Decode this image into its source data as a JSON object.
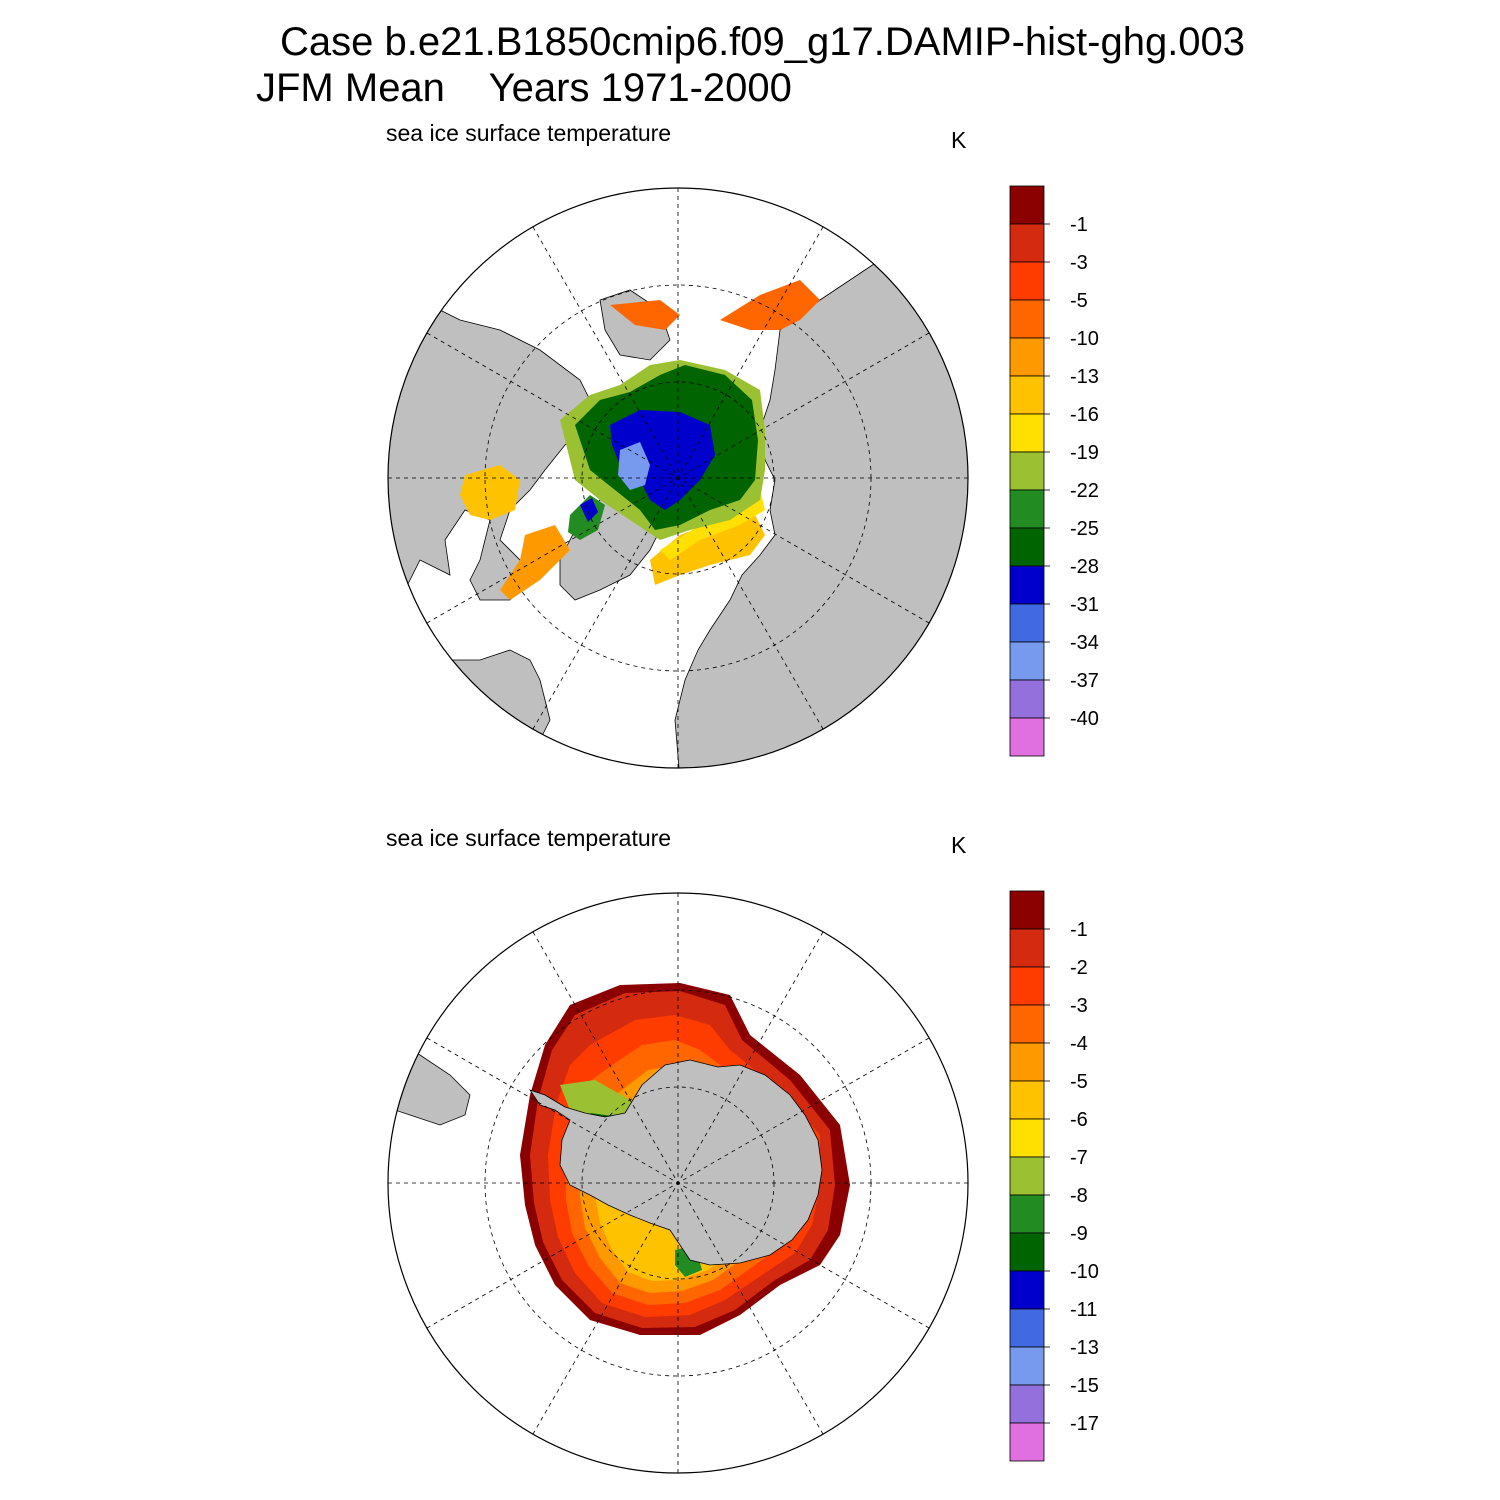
{
  "title": {
    "line1": "Case b.e21.B1850cmip6.f09_g17.DAMIP-hist-ghg.003",
    "line2": "JFM Mean    Years 1971-2000"
  },
  "colors": {
    "land": "#bfbfbf",
    "ocean": "#ffffff",
    "palette": [
      "#8b0000",
      "#d42a10",
      "#ff3c00",
      "#ff6600",
      "#ff9900",
      "#ffc200",
      "#ffe000",
      "#9bc133",
      "#228b22",
      "#006400",
      "#0000cd",
      "#4169e1",
      "#7799ee",
      "#9370db",
      "#e070e0"
    ]
  },
  "north": {
    "variable": "sea ice surface temperature",
    "units": "K",
    "colorbar": {
      "labels": [
        "-1",
        "-3",
        "-5",
        "-10",
        "-13",
        "-16",
        "-19",
        "-22",
        "-25",
        "-28",
        "-31",
        "-34",
        "-37",
        "-40"
      ]
    }
  },
  "south": {
    "variable": "sea ice surface temperature",
    "units": "K",
    "colorbar": {
      "labels": [
        "-1",
        "-2",
        "-3",
        "-4",
        "-5",
        "-6",
        "-7",
        "-8",
        "-9",
        "-10",
        "-11",
        "-13",
        "-15",
        "-17"
      ]
    }
  }
}
